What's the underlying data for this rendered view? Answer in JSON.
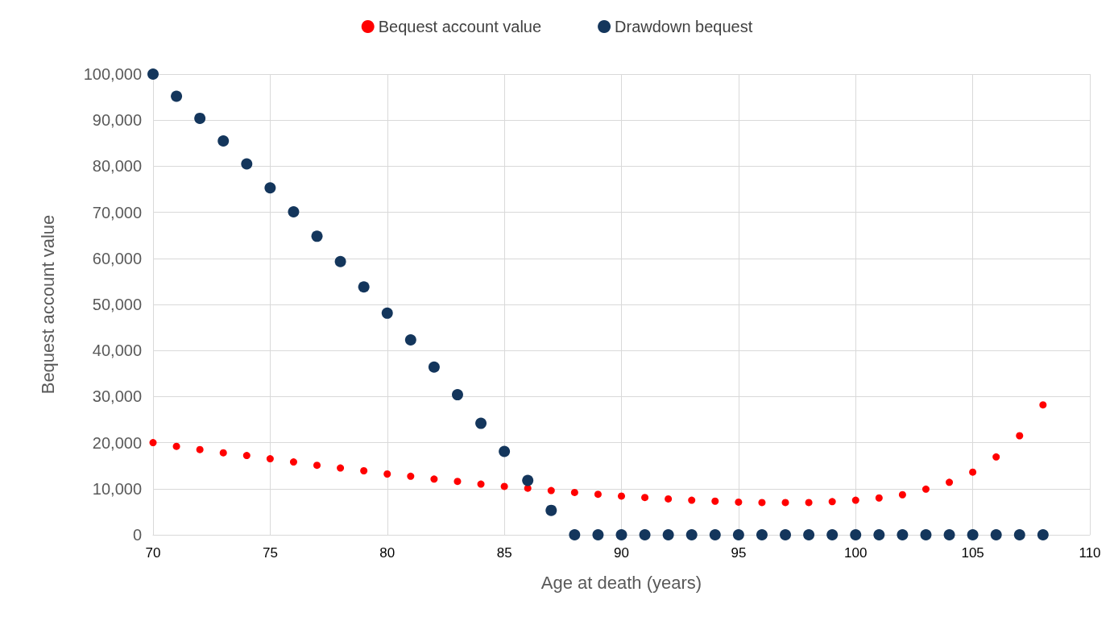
{
  "chart_data": {
    "type": "scatter",
    "xlabel": "Age at death (years)",
    "ylabel": "Bequest account value",
    "x": [
      70,
      71,
      72,
      73,
      74,
      75,
      76,
      77,
      78,
      79,
      80,
      81,
      82,
      83,
      84,
      85,
      86,
      87,
      88,
      89,
      90,
      91,
      92,
      93,
      94,
      95,
      96,
      97,
      98,
      99,
      100,
      101,
      102,
      103,
      104,
      105,
      106,
      107,
      108
    ],
    "series": [
      {
        "name": "Bequest account value",
        "color": "#ff0000",
        "values": [
          20000,
          19200,
          18500,
          17800,
          17200,
          16500,
          15800,
          15100,
          14500,
          13900,
          13200,
          12700,
          12100,
          11600,
          11000,
          10500,
          10100,
          9600,
          9200,
          8800,
          8400,
          8100,
          7800,
          7500,
          7300,
          7100,
          7000,
          7000,
          7000,
          7200,
          7500,
          8000,
          8700,
          9900,
          11400,
          13600,
          16900,
          21500,
          28200
        ]
      },
      {
        "name": "Drawdown bequest",
        "color": "#14365c",
        "values": [
          100000,
          95200,
          90400,
          85500,
          80500,
          75300,
          70100,
          64800,
          59300,
          53800,
          48100,
          42300,
          36400,
          30400,
          24200,
          18100,
          11800,
          5300,
          0,
          0,
          0,
          0,
          0,
          0,
          0,
          0,
          0,
          0,
          0,
          0,
          0,
          0,
          0,
          0,
          0,
          0,
          0,
          0,
          0
        ]
      }
    ],
    "xlim": [
      70,
      110
    ],
    "xticks": [
      70,
      75,
      80,
      85,
      90,
      95,
      100,
      105,
      110
    ],
    "ylim": [
      0,
      100000
    ],
    "yticks": [
      0,
      {
        "value": 10000,
        "label": "10,000"
      },
      {
        "value": 20000,
        "label": "20,000"
      },
      {
        "value": 30000,
        "label": "30,000"
      },
      {
        "value": 40000,
        "label": "40,000"
      },
      {
        "value": 50000,
        "label": "50,000"
      },
      {
        "value": 60000,
        "label": "60,000"
      },
      {
        "value": 70000,
        "label": "70,000"
      },
      {
        "value": 80000,
        "label": "80,000"
      },
      {
        "value": 90000,
        "label": "90,000"
      },
      {
        "value": 100000,
        "label": "100,000"
      }
    ],
    "grid": true,
    "legend": "top",
    "marker": "circle"
  }
}
